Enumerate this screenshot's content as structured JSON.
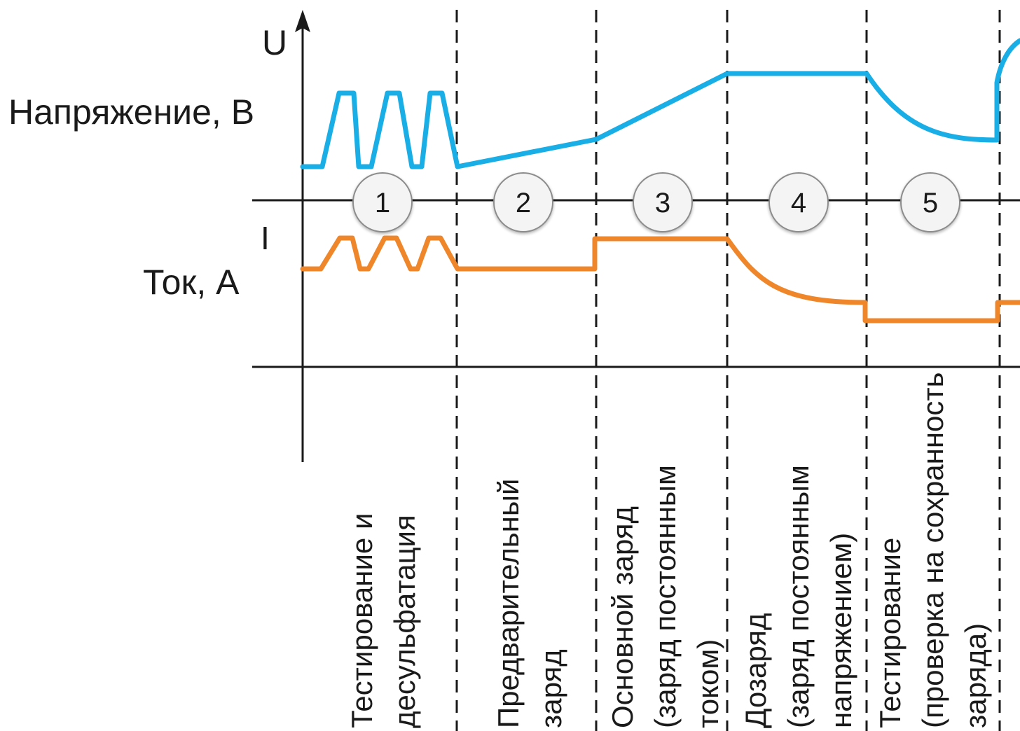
{
  "labels": {
    "u_axis": "U",
    "i_axis": "I",
    "voltage": "Напряжение, В",
    "current": "Ток, А"
  },
  "stages": [
    {
      "number": "1",
      "lines": [
        "Тестирование и",
        "десульфатация"
      ]
    },
    {
      "number": "2",
      "lines": [
        "Предварительный",
        "заряд"
      ]
    },
    {
      "number": "3",
      "lines": [
        "Основной заряд",
        "(заряд постоянным",
        "током)"
      ]
    },
    {
      "number": "4",
      "lines": [
        "Дозаряд",
        "(заряд постоянным",
        "напряжением)"
      ]
    },
    {
      "number": "5",
      "lines": [
        "Тестирование",
        "(проверка на сохранность",
        "заряда)"
      ]
    }
  ],
  "colors": {
    "voltage_line": "#1aaee6",
    "current_line": "#f0862a",
    "axes": "#1a1a1a",
    "circle_fill": "#f4f4f4"
  }
}
